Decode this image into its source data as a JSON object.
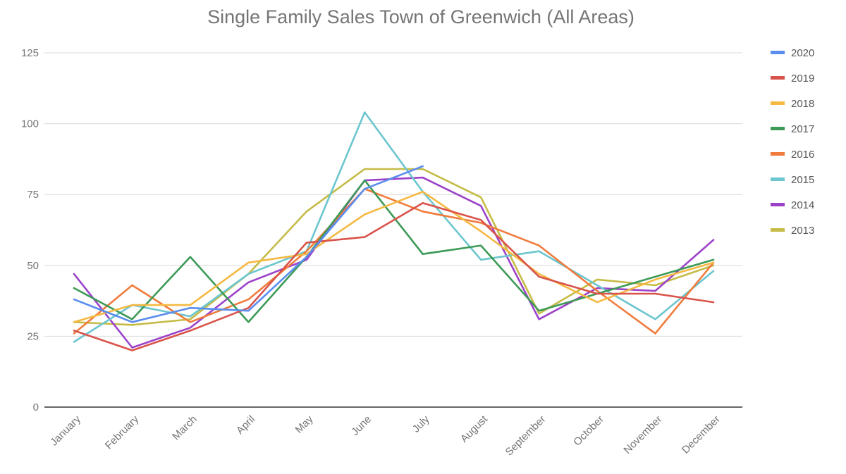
{
  "chart_data": {
    "type": "line",
    "title": "Single Family Sales Town of Greenwich (All Areas)",
    "xlabel": "",
    "ylabel": "",
    "categories": [
      "January",
      "February",
      "March",
      "April",
      "May",
      "June",
      "July",
      "August",
      "September",
      "October",
      "November",
      "December"
    ],
    "ylim": [
      0,
      125
    ],
    "yticks": [
      0,
      25,
      50,
      75,
      100,
      125
    ],
    "grid": true,
    "legend_position": "right",
    "series": [
      {
        "name": "2020",
        "color": "#5b8def",
        "values": [
          38,
          30,
          35,
          34,
          53,
          77,
          85,
          null,
          null,
          null,
          null,
          null
        ]
      },
      {
        "name": "2019",
        "color": "#d9534a",
        "values": [
          27,
          20,
          27,
          35,
          58,
          60,
          72,
          66,
          46,
          40,
          40,
          37
        ]
      },
      {
        "name": "2018",
        "color": "#f5b942",
        "values": [
          30,
          36,
          36,
          51,
          54,
          68,
          76,
          62,
          47,
          37,
          45,
          51
        ]
      },
      {
        "name": "2017",
        "color": "#3d9a57",
        "values": [
          42,
          31,
          53,
          30,
          53,
          80,
          54,
          57,
          34,
          40,
          46,
          52
        ]
      },
      {
        "name": "2016",
        "color": "#f07b3c",
        "values": [
          26,
          43,
          30,
          38,
          55,
          77,
          69,
          65,
          57,
          41,
          26,
          51
        ]
      },
      {
        "name": "2015",
        "color": "#6cc6cf",
        "values": [
          23,
          36,
          32,
          47,
          55,
          104,
          76,
          52,
          55,
          43,
          31,
          48
        ]
      },
      {
        "name": "2014",
        "color": "#9b42c9",
        "values": [
          47,
          21,
          28,
          44,
          52,
          80,
          81,
          71,
          31,
          42,
          41,
          59
        ]
      },
      {
        "name": "2013",
        "color": "#c5bb47",
        "values": [
          30,
          29,
          31,
          47,
          69,
          84,
          84,
          74,
          33,
          45,
          43,
          50
        ]
      }
    ]
  }
}
